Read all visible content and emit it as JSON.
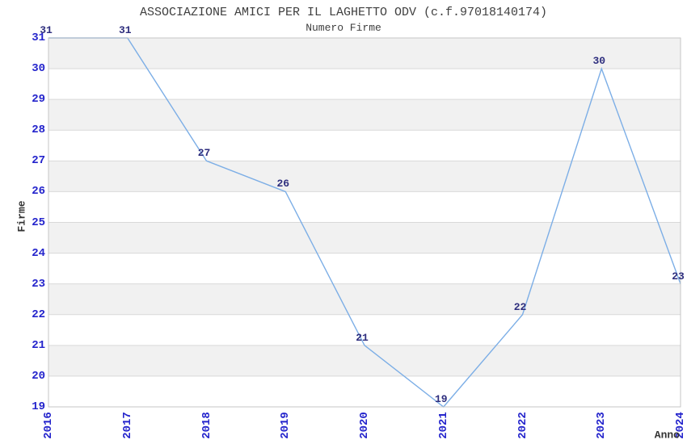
{
  "header": {
    "title": "ASSOCIAZIONE AMICI PER IL LAGHETTO ODV (c.f.97018140174)",
    "subtitle": "Numero Firme"
  },
  "chart_data": {
    "type": "line",
    "title": "ASSOCIAZIONE AMICI PER IL LAGHETTO ODV (c.f.97018140174)",
    "subtitle": "Numero Firme",
    "x": [
      2016,
      2017,
      2018,
      2019,
      2020,
      2021,
      2022,
      2023,
      2024
    ],
    "values": [
      31,
      31,
      27,
      26,
      21,
      19,
      22,
      30,
      23
    ],
    "series_name": "Numero Firme",
    "xlabel": "Anno",
    "ylabel": "Firme",
    "ylim": [
      19,
      31
    ],
    "ytick_step": 1,
    "grid": "horizontal-bands",
    "legend": "none",
    "data_labels": true
  },
  "colors": {
    "line": "#7caee6",
    "tick_label": "#2424cc",
    "data_label": "#2e2e7e",
    "band_gray": "#f1f1f1",
    "band_white": "#ffffff",
    "gridline": "#d9d9d9",
    "plot_border": "#c6c6c6",
    "title_text": "#3f3f3f",
    "background": "#ffffff"
  }
}
